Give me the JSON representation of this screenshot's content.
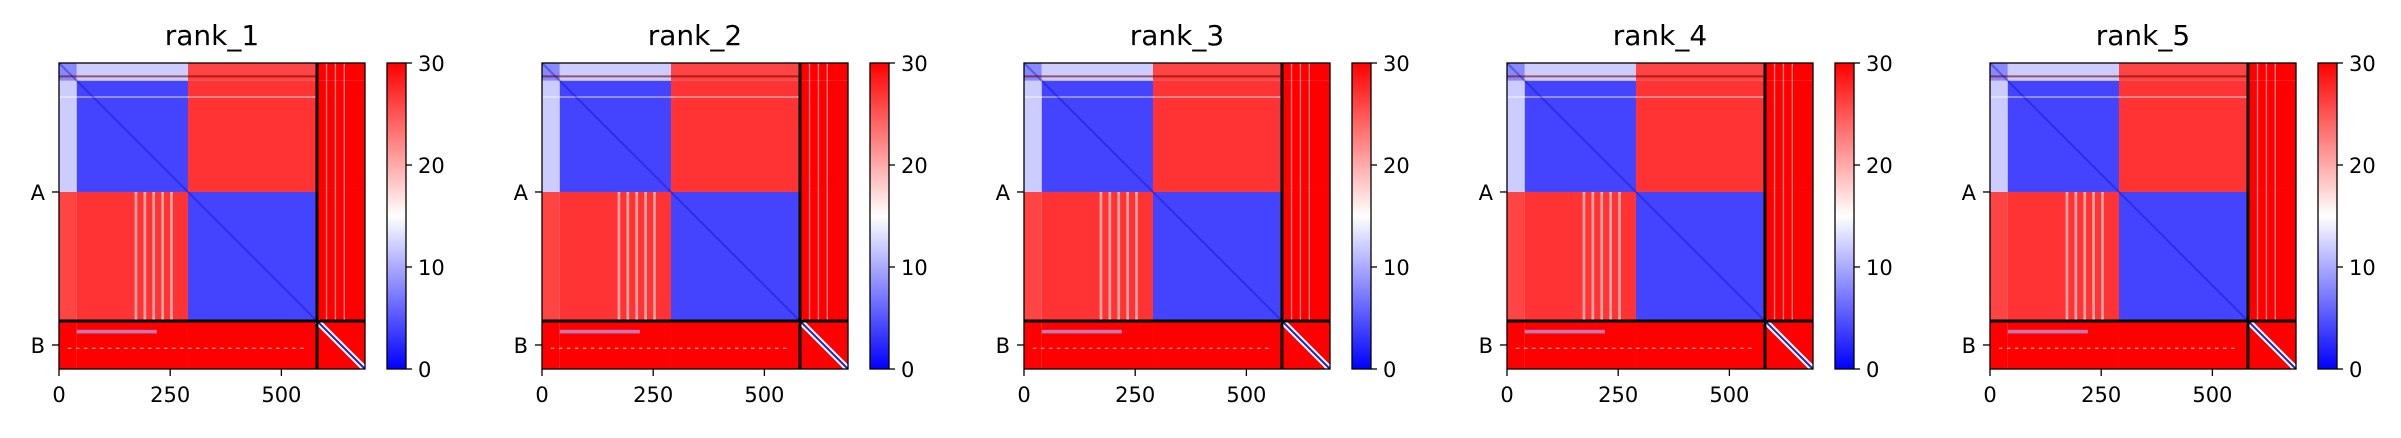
{
  "chart_data": [
    {
      "type": "heatmap",
      "title": "rank_1",
      "xlabel": "",
      "ylabel": "",
      "x_ticks": [
        "0",
        "250",
        "500"
      ],
      "y_ticks": [
        "A",
        "B"
      ],
      "colorbar": {
        "range": [
          0,
          30
        ],
        "ticks": [
          "0",
          "10",
          "20",
          "30"
        ],
        "colors": [
          "#0000ff",
          "#ffffff",
          "#ff0000"
        ]
      },
      "xlim": [
        0,
        688
      ],
      "ylim": [
        0,
        688
      ],
      "chain_boundary": 580,
      "chains": [
        {
          "name": "A",
          "start": 0,
          "end": 580
        },
        {
          "name": "B",
          "start": 580,
          "end": 688
        }
      ],
      "grid": false
    },
    {
      "type": "heatmap",
      "title": "rank_2",
      "xlabel": "",
      "ylabel": "",
      "x_ticks": [
        "0",
        "250",
        "500"
      ],
      "y_ticks": [
        "A",
        "B"
      ],
      "colorbar": {
        "range": [
          0,
          30
        ],
        "ticks": [
          "0",
          "10",
          "20",
          "30"
        ],
        "colors": [
          "#0000ff",
          "#ffffff",
          "#ff0000"
        ]
      },
      "xlim": [
        0,
        688
      ],
      "ylim": [
        0,
        688
      ],
      "chain_boundary": 580,
      "chains": [
        {
          "name": "A",
          "start": 0,
          "end": 580
        },
        {
          "name": "B",
          "start": 580,
          "end": 688
        }
      ],
      "grid": false
    },
    {
      "type": "heatmap",
      "title": "rank_3",
      "xlabel": "",
      "ylabel": "",
      "x_ticks": [
        "0",
        "250",
        "500"
      ],
      "y_ticks": [
        "A",
        "B"
      ],
      "colorbar": {
        "range": [
          0,
          30
        ],
        "ticks": [
          "0",
          "10",
          "20",
          "30"
        ],
        "colors": [
          "#0000ff",
          "#ffffff",
          "#ff0000"
        ]
      },
      "xlim": [
        0,
        688
      ],
      "ylim": [
        0,
        688
      ],
      "chain_boundary": 580,
      "chains": [
        {
          "name": "A",
          "start": 0,
          "end": 580
        },
        {
          "name": "B",
          "start": 580,
          "end": 688
        }
      ],
      "grid": false
    },
    {
      "type": "heatmap",
      "title": "rank_4",
      "xlabel": "",
      "ylabel": "",
      "x_ticks": [
        "0",
        "250",
        "500"
      ],
      "y_ticks": [
        "A",
        "B"
      ],
      "colorbar": {
        "range": [
          0,
          30
        ],
        "ticks": [
          "0",
          "10",
          "20",
          "30"
        ],
        "colors": [
          "#0000ff",
          "#ffffff",
          "#ff0000"
        ]
      },
      "xlim": [
        0,
        688
      ],
      "ylim": [
        0,
        688
      ],
      "chain_boundary": 580,
      "chains": [
        {
          "name": "A",
          "start": 0,
          "end": 580
        },
        {
          "name": "B",
          "start": 580,
          "end": 688
        }
      ],
      "grid": false
    },
    {
      "type": "heatmap",
      "title": "rank_5",
      "xlabel": "",
      "ylabel": "",
      "x_ticks": [
        "0",
        "250",
        "500"
      ],
      "y_ticks": [
        "A",
        "B"
      ],
      "colorbar": {
        "range": [
          0,
          30
        ],
        "ticks": [
          "0",
          "10",
          "20",
          "30"
        ],
        "colors": [
          "#0000ff",
          "#ffffff",
          "#ff0000"
        ]
      },
      "xlim": [
        0,
        688
      ],
      "ylim": [
        0,
        688
      ],
      "chain_boundary": 580,
      "chains": [
        {
          "name": "A",
          "start": 0,
          "end": 580
        },
        {
          "name": "B",
          "start": 580,
          "end": 688
        }
      ],
      "grid": false
    }
  ]
}
